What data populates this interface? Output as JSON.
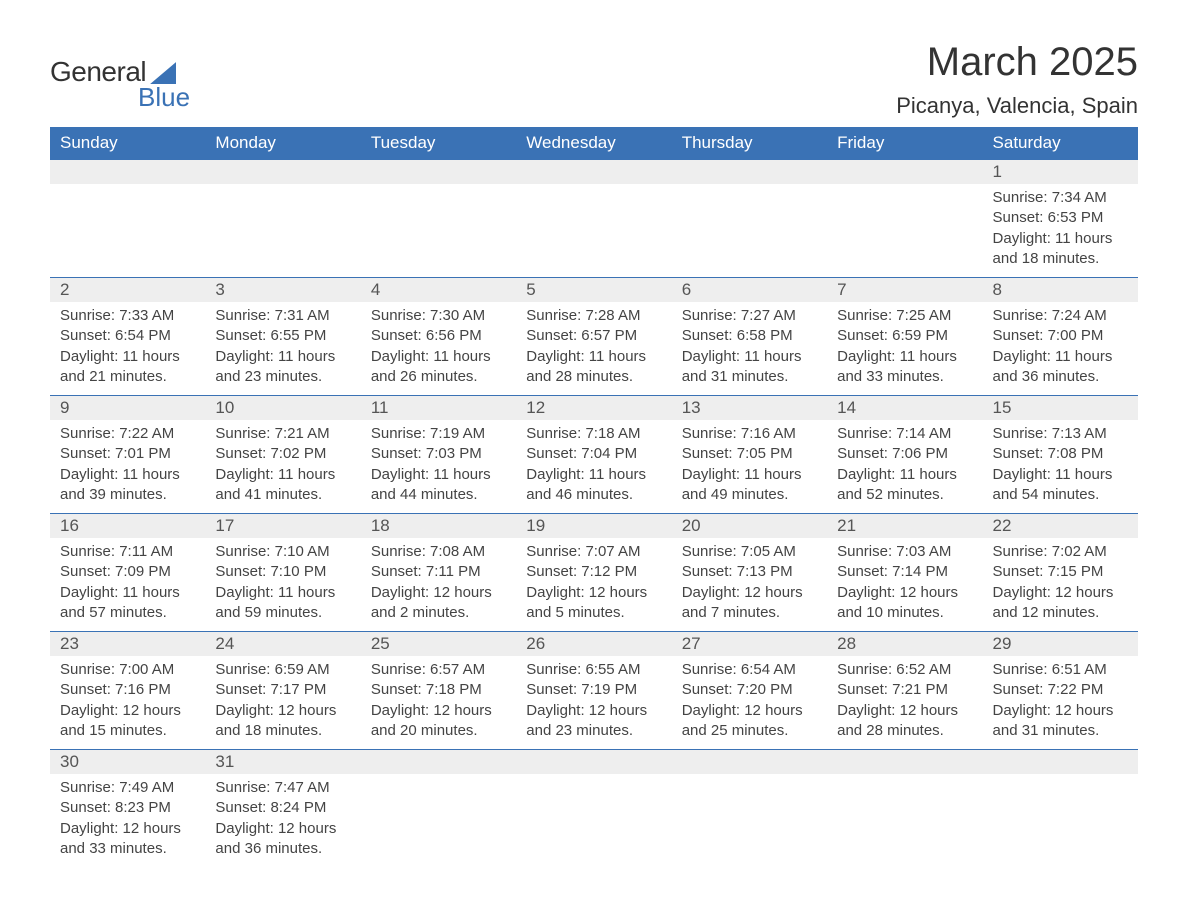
{
  "brand": {
    "word1": "General",
    "word2": "Blue",
    "accent_color": "#3a72b5"
  },
  "title": {
    "month_year": "March 2025",
    "location": "Picanya, Valencia, Spain"
  },
  "calendar": {
    "headers": [
      "Sunday",
      "Monday",
      "Tuesday",
      "Wednesday",
      "Thursday",
      "Friday",
      "Saturday"
    ],
    "header_bg": "#3a72b5",
    "header_fg": "#ffffff",
    "daynum_bg": "#eeeeee",
    "border_color": "#3a72b5",
    "label_sunrise": "Sunrise:",
    "label_sunset": "Sunset:",
    "label_daylight": "Daylight:",
    "weeks": [
      [
        null,
        null,
        null,
        null,
        null,
        null,
        {
          "n": "1",
          "sunrise": "7:34 AM",
          "sunset": "6:53 PM",
          "daylight": "11 hours and 18 minutes."
        }
      ],
      [
        {
          "n": "2",
          "sunrise": "7:33 AM",
          "sunset": "6:54 PM",
          "daylight": "11 hours and 21 minutes."
        },
        {
          "n": "3",
          "sunrise": "7:31 AM",
          "sunset": "6:55 PM",
          "daylight": "11 hours and 23 minutes."
        },
        {
          "n": "4",
          "sunrise": "7:30 AM",
          "sunset": "6:56 PM",
          "daylight": "11 hours and 26 minutes."
        },
        {
          "n": "5",
          "sunrise": "7:28 AM",
          "sunset": "6:57 PM",
          "daylight": "11 hours and 28 minutes."
        },
        {
          "n": "6",
          "sunrise": "7:27 AM",
          "sunset": "6:58 PM",
          "daylight": "11 hours and 31 minutes."
        },
        {
          "n": "7",
          "sunrise": "7:25 AM",
          "sunset": "6:59 PM",
          "daylight": "11 hours and 33 minutes."
        },
        {
          "n": "8",
          "sunrise": "7:24 AM",
          "sunset": "7:00 PM",
          "daylight": "11 hours and 36 minutes."
        }
      ],
      [
        {
          "n": "9",
          "sunrise": "7:22 AM",
          "sunset": "7:01 PM",
          "daylight": "11 hours and 39 minutes."
        },
        {
          "n": "10",
          "sunrise": "7:21 AM",
          "sunset": "7:02 PM",
          "daylight": "11 hours and 41 minutes."
        },
        {
          "n": "11",
          "sunrise": "7:19 AM",
          "sunset": "7:03 PM",
          "daylight": "11 hours and 44 minutes."
        },
        {
          "n": "12",
          "sunrise": "7:18 AM",
          "sunset": "7:04 PM",
          "daylight": "11 hours and 46 minutes."
        },
        {
          "n": "13",
          "sunrise": "7:16 AM",
          "sunset": "7:05 PM",
          "daylight": "11 hours and 49 minutes."
        },
        {
          "n": "14",
          "sunrise": "7:14 AM",
          "sunset": "7:06 PM",
          "daylight": "11 hours and 52 minutes."
        },
        {
          "n": "15",
          "sunrise": "7:13 AM",
          "sunset": "7:08 PM",
          "daylight": "11 hours and 54 minutes."
        }
      ],
      [
        {
          "n": "16",
          "sunrise": "7:11 AM",
          "sunset": "7:09 PM",
          "daylight": "11 hours and 57 minutes."
        },
        {
          "n": "17",
          "sunrise": "7:10 AM",
          "sunset": "7:10 PM",
          "daylight": "11 hours and 59 minutes."
        },
        {
          "n": "18",
          "sunrise": "7:08 AM",
          "sunset": "7:11 PM",
          "daylight": "12 hours and 2 minutes."
        },
        {
          "n": "19",
          "sunrise": "7:07 AM",
          "sunset": "7:12 PM",
          "daylight": "12 hours and 5 minutes."
        },
        {
          "n": "20",
          "sunrise": "7:05 AM",
          "sunset": "7:13 PM",
          "daylight": "12 hours and 7 minutes."
        },
        {
          "n": "21",
          "sunrise": "7:03 AM",
          "sunset": "7:14 PM",
          "daylight": "12 hours and 10 minutes."
        },
        {
          "n": "22",
          "sunrise": "7:02 AM",
          "sunset": "7:15 PM",
          "daylight": "12 hours and 12 minutes."
        }
      ],
      [
        {
          "n": "23",
          "sunrise": "7:00 AM",
          "sunset": "7:16 PM",
          "daylight": "12 hours and 15 minutes."
        },
        {
          "n": "24",
          "sunrise": "6:59 AM",
          "sunset": "7:17 PM",
          "daylight": "12 hours and 18 minutes."
        },
        {
          "n": "25",
          "sunrise": "6:57 AM",
          "sunset": "7:18 PM",
          "daylight": "12 hours and 20 minutes."
        },
        {
          "n": "26",
          "sunrise": "6:55 AM",
          "sunset": "7:19 PM",
          "daylight": "12 hours and 23 minutes."
        },
        {
          "n": "27",
          "sunrise": "6:54 AM",
          "sunset": "7:20 PM",
          "daylight": "12 hours and 25 minutes."
        },
        {
          "n": "28",
          "sunrise": "6:52 AM",
          "sunset": "7:21 PM",
          "daylight": "12 hours and 28 minutes."
        },
        {
          "n": "29",
          "sunrise": "6:51 AM",
          "sunset": "7:22 PM",
          "daylight": "12 hours and 31 minutes."
        }
      ],
      [
        {
          "n": "30",
          "sunrise": "7:49 AM",
          "sunset": "8:23 PM",
          "daylight": "12 hours and 33 minutes."
        },
        {
          "n": "31",
          "sunrise": "7:47 AM",
          "sunset": "8:24 PM",
          "daylight": "12 hours and 36 minutes."
        },
        null,
        null,
        null,
        null,
        null
      ]
    ]
  }
}
